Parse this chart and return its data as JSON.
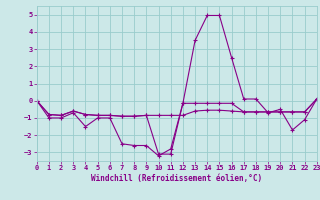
{
  "title": "",
  "xlabel": "Windchill (Refroidissement éolien,°C)",
  "ylabel": "",
  "background_color": "#cce8e8",
  "grid_color": "#99cccc",
  "line_color": "#880088",
  "xlim": [
    0,
    23
  ],
  "ylim": [
    -3.5,
    5.5
  ],
  "xticks": [
    0,
    1,
    2,
    3,
    4,
    5,
    6,
    7,
    8,
    9,
    10,
    11,
    12,
    13,
    14,
    15,
    16,
    17,
    18,
    19,
    20,
    21,
    22,
    23
  ],
  "yticks": [
    -3,
    -2,
    -1,
    0,
    1,
    2,
    3,
    4,
    5
  ],
  "line1_x": [
    0,
    1,
    2,
    3,
    4,
    5,
    6,
    7,
    8,
    9,
    10,
    11,
    12,
    13,
    14,
    15,
    16,
    17,
    18,
    19,
    20,
    21,
    22,
    23
  ],
  "line1_y": [
    0,
    -1,
    -1,
    -0.7,
    -1.5,
    -1,
    -1,
    -2.5,
    -2.6,
    -2.6,
    -3.2,
    -2.8,
    -0.15,
    3.5,
    4.95,
    4.95,
    2.5,
    0.1,
    0.1,
    -0.7,
    -0.5,
    -1.7,
    -1.1,
    0.1
  ],
  "line2_x": [
    0,
    1,
    2,
    3,
    4,
    5,
    6,
    7,
    8,
    9,
    10,
    11,
    12,
    13,
    14,
    15,
    16,
    17,
    18,
    19,
    20,
    21,
    22,
    23
  ],
  "line2_y": [
    0,
    -0.8,
    -0.85,
    -0.6,
    -0.8,
    -0.85,
    -0.85,
    -0.9,
    -0.9,
    -0.85,
    -0.85,
    -0.85,
    -0.85,
    -0.6,
    -0.55,
    -0.55,
    -0.6,
    -0.65,
    -0.65,
    -0.65,
    -0.65,
    -0.65,
    -0.65,
    0.1
  ],
  "line3_x": [
    0,
    1,
    2,
    3,
    4,
    5,
    6,
    7,
    8,
    9,
    10,
    11,
    12,
    13,
    14,
    15,
    16,
    17,
    18,
    19,
    20,
    21,
    22,
    23
  ],
  "line3_y": [
    0,
    -0.8,
    -0.85,
    -0.6,
    -0.8,
    -0.85,
    -0.85,
    -0.9,
    -0.9,
    -0.85,
    -3.1,
    -3.1,
    -0.15,
    -0.15,
    -0.15,
    -0.15,
    -0.15,
    -0.65,
    -0.65,
    -0.65,
    -0.65,
    -0.65,
    -0.65,
    0.1
  ]
}
